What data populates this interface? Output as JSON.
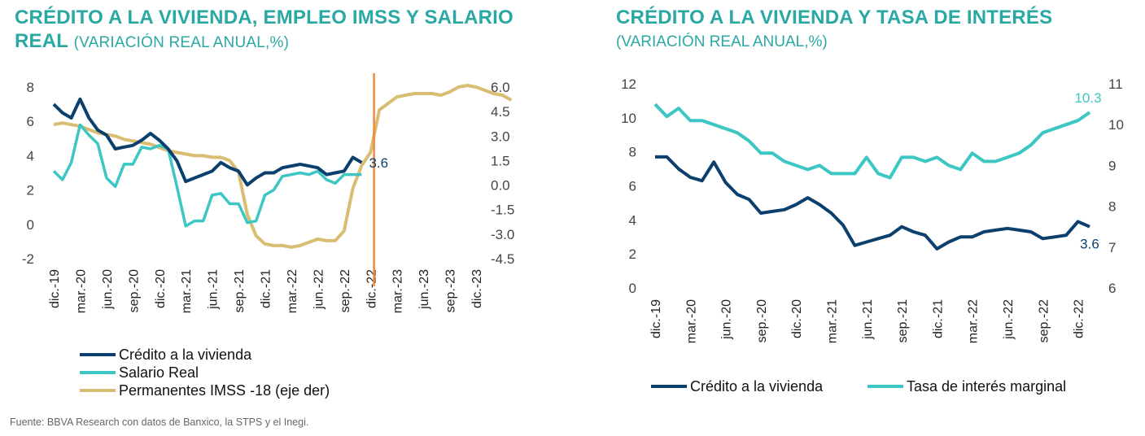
{
  "source": "Fuente: BBVA Research con datos de Banxico, la STPS y el Inegi.",
  "colors": {
    "dark_blue": "#0b3f6e",
    "teal": "#3cc6c4",
    "gold": "#d8bd72",
    "orange": "#ee8a3b",
    "title": "#2aa8a3"
  },
  "chart_data": [
    {
      "type": "line",
      "title_line1": "CRÉDITO A LA VIVIENDA, EMPLEO IMSS Y SALARIO",
      "title_line2": "REAL",
      "subtitle": "(VARIACIÓN REAL ANUAL,%)",
      "x_labels": [
        "dic.-19",
        "mar.-20",
        "jun.-20",
        "sep.-20",
        "dic.-20",
        "mar.-21",
        "jun.-21",
        "sep.-21",
        "dic.-21",
        "mar.-22",
        "jun.-22",
        "sep.-22",
        "dic.-22",
        "mar.-23",
        "jun.-23",
        "sep.-23",
        "dic.-23"
      ],
      "ylim_left": [
        -2,
        8
      ],
      "yticks_left": [
        "-2",
        "0",
        "2",
        "4",
        "6",
        "8"
      ],
      "ylim_right": [
        -4.5,
        6.0
      ],
      "yticks_right": [
        "-4.5",
        "-3.0",
        "-1.5",
        "0.0",
        "1.5",
        "3.0",
        "4.5",
        "6.0"
      ],
      "vertical_marker_index": 36.4,
      "end_label": "3.6",
      "legend": [
        "Crédito a la vivienda",
        "Salario Real",
        "Permanentes IMSS -18 (eje der)"
      ],
      "series": [
        {
          "name": "Crédito a la vivienda",
          "axis": "left",
          "values": [
            7.0,
            6.5,
            6.2,
            7.3,
            6.2,
            5.5,
            5.2,
            4.4,
            4.5,
            4.6,
            4.9,
            5.3,
            4.9,
            4.4,
            3.7,
            2.5,
            2.7,
            2.9,
            3.1,
            3.6,
            3.3,
            3.1,
            2.3,
            2.7,
            3.0,
            3.0,
            3.3,
            3.4,
            3.5,
            3.4,
            3.3,
            2.9,
            3.0,
            3.1,
            3.9,
            3.6
          ]
        },
        {
          "name": "Salario Real",
          "axis": "left",
          "values": [
            3.1,
            2.6,
            3.6,
            5.8,
            5.2,
            4.7,
            2.7,
            2.2,
            3.5,
            3.5,
            4.5,
            4.4,
            4.6,
            4.4,
            2.2,
            -0.1,
            0.2,
            0.2,
            1.7,
            1.8,
            1.2,
            1.2,
            0.1,
            0.2,
            1.7,
            2.0,
            2.8,
            2.9,
            3.0,
            2.9,
            3.1,
            2.6,
            2.4,
            2.9,
            2.9,
            2.9
          ]
        },
        {
          "name": "Permanentes IMSS -18 (eje der)",
          "axis": "right",
          "values": [
            3.7,
            3.8,
            3.7,
            3.6,
            3.4,
            3.2,
            3.1,
            3.0,
            2.8,
            2.7,
            2.6,
            2.5,
            2.3,
            2.1,
            2.0,
            1.9,
            1.8,
            1.8,
            1.7,
            1.7,
            1.5,
            0.8,
            -1.8,
            -3.1,
            -3.6,
            -3.7,
            -3.7,
            -3.8,
            -3.7,
            -3.5,
            -3.3,
            -3.4,
            -3.4,
            -2.8,
            -0.2,
            1.2,
            2.0,
            4.6,
            5.0,
            5.4,
            5.5,
            5.6,
            5.6,
            5.6,
            5.5,
            5.7,
            6.0,
            6.1,
            6.0,
            5.8,
            5.6,
            5.5,
            5.2
          ]
        }
      ]
    },
    {
      "type": "line",
      "title_line1": "CRÉDITO A LA VIVIENDA Y TASA DE INTERÉS",
      "subtitle": "(VARIACIÓN REAL ANUAL,%)",
      "x_labels": [
        "dic.-19",
        "mar.-20",
        "jun.-20",
        "sep.-20",
        "dic.-20",
        "mar.-21",
        "jun.-21",
        "sep.-21",
        "dic.-21",
        "mar.-22",
        "jun.-22",
        "sep.-22",
        "dic.-22"
      ],
      "ylim_left": [
        0,
        12
      ],
      "yticks_left": [
        "0",
        "2",
        "4",
        "6",
        "8",
        "10",
        "12"
      ],
      "ylim_right": [
        6,
        11
      ],
      "yticks_right": [
        "6",
        "7",
        "8",
        "9",
        "10",
        "11"
      ],
      "end_label_left": "3.6",
      "end_label_right": "10.3",
      "legend": [
        "Crédito a la vivienda",
        "Tasa de interés marginal"
      ],
      "series": [
        {
          "name": "Crédito a la vivienda",
          "axis": "left",
          "values": [
            7.7,
            7.7,
            7.0,
            6.5,
            6.3,
            7.4,
            6.2,
            5.5,
            5.2,
            4.4,
            4.5,
            4.6,
            4.9,
            5.3,
            4.9,
            4.4,
            3.7,
            2.5,
            2.7,
            2.9,
            3.1,
            3.6,
            3.3,
            3.1,
            2.3,
            2.7,
            3.0,
            3.0,
            3.3,
            3.4,
            3.5,
            3.4,
            3.3,
            2.9,
            3.0,
            3.1,
            3.9,
            3.6
          ]
        },
        {
          "name": "Tasa de interés marginal",
          "axis": "right",
          "values": [
            10.5,
            10.2,
            10.4,
            10.1,
            10.1,
            10.0,
            9.9,
            9.8,
            9.6,
            9.3,
            9.3,
            9.1,
            9.0,
            8.9,
            9.0,
            8.8,
            8.8,
            8.8,
            9.2,
            8.8,
            8.7,
            9.2,
            9.2,
            9.1,
            9.2,
            9.0,
            8.9,
            9.3,
            9.1,
            9.1,
            9.2,
            9.3,
            9.5,
            9.8,
            9.9,
            10.0,
            10.1,
            10.3
          ]
        }
      ]
    }
  ]
}
